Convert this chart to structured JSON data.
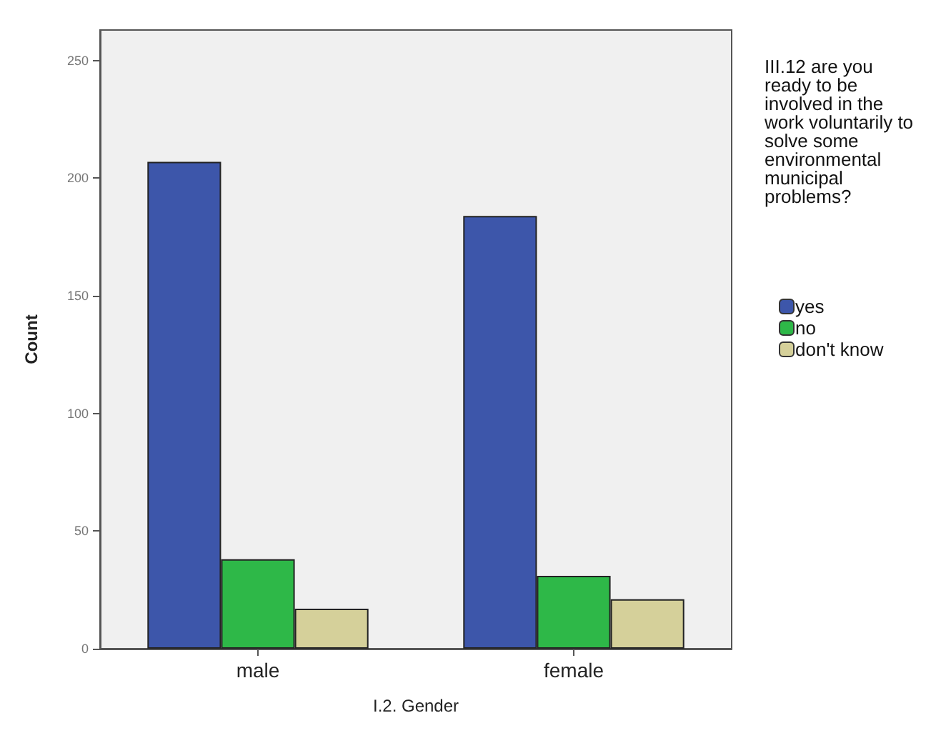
{
  "chart_data": {
    "type": "bar",
    "xlabel": "I.2. Gender",
    "ylabel": "Count",
    "legend_title": "III.12 are you ready to be involved in the work voluntarily to solve some environmental municipal problems?",
    "categories": [
      "male",
      "female"
    ],
    "series": [
      {
        "name": "yes",
        "color": "#3d56aa",
        "values": [
          207,
          184
        ]
      },
      {
        "name": "no",
        "color": "#2eb848",
        "values": [
          38,
          31
        ]
      },
      {
        "name": "don't know",
        "color": "#d5d09a",
        "values": [
          17,
          21
        ]
      }
    ],
    "ylim": [
      0,
      263
    ],
    "yticks": [
      0,
      50,
      100,
      150,
      200,
      250
    ],
    "grid": false,
    "legend": "right"
  }
}
